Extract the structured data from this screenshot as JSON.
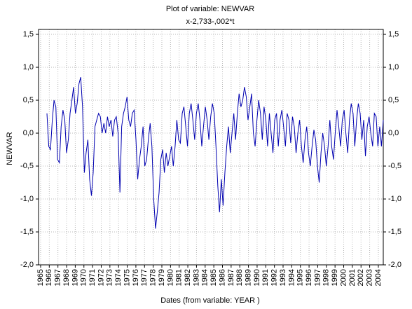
{
  "chart_data": {
    "type": "line",
    "title": "Plot of variable: NEWVAR",
    "subtitle": "x-2,733-,002*t",
    "y_label": "NEWVAR",
    "x_label": "Dates (from variable: YEAR )",
    "xlim": [
      1964.76,
      2004.57
    ],
    "xticks": [
      1965,
      1966,
      1967,
      1968,
      1969,
      1970,
      1971,
      1972,
      1973,
      1974,
      1975,
      1976,
      1977,
      1978,
      1979,
      1980,
      1981,
      1982,
      1983,
      1984,
      1985,
      1986,
      1987,
      1988,
      1989,
      1990,
      1991,
      1992,
      1993,
      1994,
      1995,
      1996,
      1997,
      1998,
      1999,
      2000,
      2001,
      2002,
      2003,
      2004
    ],
    "ylim": [
      -2.0,
      1.575
    ],
    "yticks": [
      {
        "value": -2.0,
        "label": "-2,0"
      },
      {
        "value": -1.5,
        "label": "-1,5"
      },
      {
        "value": -1.0,
        "label": "-1,0"
      },
      {
        "value": -0.5,
        "label": "-0,5"
      },
      {
        "value": 0.0,
        "label": "0,0"
      },
      {
        "value": 0.5,
        "label": "0,5"
      },
      {
        "value": 1.0,
        "label": "1,0"
      },
      {
        "value": 1.5,
        "label": "1,5"
      }
    ],
    "grid": true,
    "series": [
      {
        "name": "NEWVAR",
        "color": "#0000b0",
        "x": [
          1965.73,
          1965.94,
          1966.14,
          1966.35,
          1966.55,
          1966.76,
          1966.96,
          1967.17,
          1967.37,
          1967.58,
          1967.79,
          1967.99,
          1968.2,
          1968.4,
          1968.61,
          1968.81,
          1969.02,
          1969.22,
          1969.43,
          1969.63,
          1969.84,
          1970.05,
          1970.25,
          1970.46,
          1970.66,
          1970.87,
          1971.07,
          1971.28,
          1971.48,
          1971.69,
          1971.9,
          1972.1,
          1972.31,
          1972.51,
          1972.72,
          1972.92,
          1973.13,
          1973.33,
          1973.54,
          1973.74,
          1973.95,
          1974.16,
          1974.36,
          1974.57,
          1974.77,
          1974.98,
          1975.18,
          1975.39,
          1975.59,
          1975.8,
          1976.01,
          1976.21,
          1976.42,
          1976.62,
          1976.83,
          1977.03,
          1977.24,
          1977.44,
          1977.65,
          1977.85,
          1978.06,
          1978.27,
          1978.47,
          1978.68,
          1978.88,
          1979.09,
          1979.29,
          1979.5,
          1979.7,
          1979.91,
          1980.12,
          1980.32,
          1980.53,
          1980.73,
          1980.94,
          1981.14,
          1981.35,
          1981.55,
          1981.76,
          1981.96,
          1982.17,
          1982.38,
          1982.58,
          1982.79,
          1982.99,
          1983.2,
          1983.4,
          1983.61,
          1983.81,
          1984.02,
          1984.23,
          1984.43,
          1984.64,
          1984.84,
          1985.05,
          1985.25,
          1985.46,
          1985.66,
          1985.87,
          1986.07,
          1986.28,
          1986.49,
          1986.69,
          1986.9,
          1987.1,
          1987.31,
          1987.51,
          1987.72,
          1987.92,
          1988.13,
          1988.34,
          1988.54,
          1988.75,
          1988.95,
          1989.16,
          1989.36,
          1989.57,
          1989.77,
          1989.98,
          1990.18,
          1990.39,
          1990.6,
          1990.8,
          1991.01,
          1991.21,
          1991.42,
          1991.62,
          1991.83,
          1992.03,
          1992.24,
          1992.45,
          1992.65,
          1992.86,
          1993.06,
          1993.27,
          1993.47,
          1993.68,
          1993.88,
          1994.09,
          1994.29,
          1994.5,
          1994.71,
          1994.91,
          1995.12,
          1995.32,
          1995.53,
          1995.73,
          1995.94,
          1996.14,
          1996.35,
          1996.56,
          1996.76,
          1996.97,
          1997.17,
          1997.38,
          1997.58,
          1997.79,
          1997.99,
          1998.2,
          1998.4,
          1998.61,
          1998.82,
          1999.02,
          1999.23,
          1999.43,
          1999.64,
          1999.84,
          2000.05,
          2000.25,
          2000.46,
          2000.67,
          2000.87,
          2001.08,
          2001.28,
          2001.49,
          2001.69,
          2001.9,
          2002.1,
          2002.31,
          2002.51,
          2002.72,
          2002.93,
          2003.13,
          2003.34,
          2003.54,
          2003.75,
          2003.95,
          2004.16,
          2004.36,
          2004.57
        ],
        "values": [
          0.3,
          -0.2,
          -0.25,
          0.2,
          0.5,
          0.4,
          -0.4,
          -0.45,
          0.1,
          0.35,
          0.2,
          -0.3,
          -0.1,
          0.3,
          0.5,
          0.7,
          0.3,
          0.45,
          0.75,
          0.85,
          0.4,
          -0.6,
          -0.3,
          -0.1,
          -0.7,
          -0.95,
          -0.6,
          0.1,
          0.2,
          0.3,
          0.25,
          0.0,
          0.15,
          0.0,
          0.25,
          0.1,
          0.2,
          -0.05,
          0.2,
          0.25,
          0.0,
          -0.9,
          0.1,
          0.3,
          0.4,
          0.55,
          0.2,
          0.1,
          0.3,
          0.35,
          -0.1,
          -0.7,
          -0.4,
          -0.2,
          0.1,
          -0.5,
          -0.4,
          -0.1,
          0.15,
          -0.2,
          -1.0,
          -1.45,
          -1.2,
          -0.9,
          -0.4,
          -0.25,
          -0.6,
          -0.3,
          -0.5,
          -0.35,
          -0.2,
          -0.5,
          -0.2,
          0.2,
          -0.1,
          -0.15,
          0.3,
          0.4,
          0.1,
          -0.2,
          0.3,
          0.45,
          0.2,
          -0.1,
          0.3,
          0.45,
          0.2,
          -0.2,
          0.1,
          0.4,
          0.2,
          -0.1,
          0.25,
          0.45,
          0.3,
          -0.2,
          -0.8,
          -1.2,
          -0.7,
          -1.1,
          -0.6,
          -0.2,
          0.1,
          -0.3,
          0.0,
          0.3,
          -0.1,
          0.3,
          0.6,
          0.4,
          0.5,
          0.7,
          0.55,
          0.2,
          0.4,
          0.6,
          0.0,
          -0.2,
          0.2,
          0.5,
          0.3,
          -0.1,
          0.4,
          0.2,
          -0.2,
          0.3,
          0.0,
          -0.3,
          0.2,
          0.3,
          -0.2,
          0.2,
          0.35,
          0.1,
          -0.2,
          0.3,
          0.2,
          -0.15,
          0.25,
          0.1,
          -0.3,
          0.0,
          0.2,
          -0.2,
          -0.45,
          -0.1,
          0.1,
          -0.3,
          -0.5,
          -0.2,
          0.05,
          -0.1,
          -0.5,
          -0.75,
          -0.3,
          0.0,
          -0.2,
          -0.5,
          -0.2,
          0.2,
          -0.2,
          -0.4,
          0.0,
          0.35,
          0.1,
          -0.2,
          0.2,
          0.35,
          0.0,
          -0.3,
          0.2,
          0.45,
          0.3,
          -0.2,
          0.2,
          0.45,
          0.3,
          -0.1,
          0.2,
          -0.35,
          0.1,
          0.25,
          0.0,
          -0.2,
          0.3,
          0.25,
          -0.2,
          0.1,
          -0.2,
          0.2
        ]
      }
    ]
  }
}
